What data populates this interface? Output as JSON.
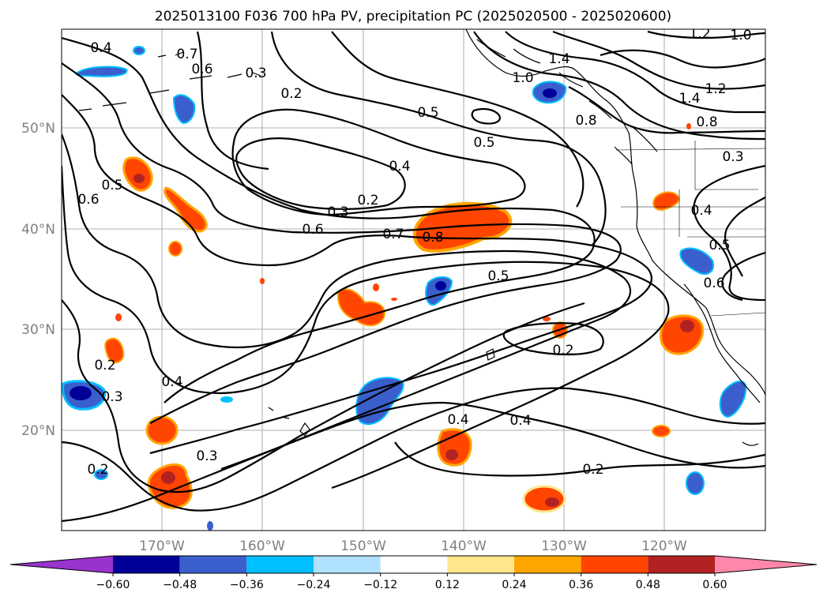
{
  "title": "2025013100 F036 700 hPa PV, precipitation PC (2025020500 - 2025020600)",
  "lat_labels": [
    "50°N",
    "40°N",
    "30°N",
    "20°N"
  ],
  "lon_labels": [
    "170°W",
    "160°W",
    "150°W",
    "140°W",
    "130°W",
    "120°W"
  ],
  "colorbar": {
    "ticks": [
      "−0.60",
      "−0.48",
      "−0.36",
      "−0.24",
      "−0.12",
      "0.12",
      "0.24",
      "0.36",
      "0.48",
      "0.60"
    ],
    "colors": [
      "#9933cc",
      "#000099",
      "#3a5fcd",
      "#00bfff",
      "#b0e2ff",
      "#ffffff",
      "#ffe68c",
      "#ffa500",
      "#ff4500",
      "#b22222",
      "#ff88aa"
    ]
  },
  "contour_labels": [
    "0.4",
    "0.7",
    "0.6",
    "0.3",
    "0.2",
    "0.5",
    "0.5",
    "0.4",
    "0.2",
    "0.3",
    "0.6",
    "0.7",
    "0.8",
    "0.5",
    "0.5",
    "0.6",
    "0.2",
    "0.3",
    "0.4",
    "0.2",
    "0.4",
    "0.4",
    "0.2",
    "0.3",
    "0.2",
    "1.0",
    "1.4",
    "1.2",
    "1.0",
    "0.8",
    "1.4",
    "1.2",
    "0.8",
    "0.3",
    "0.4",
    "0.5",
    "0.6"
  ]
}
